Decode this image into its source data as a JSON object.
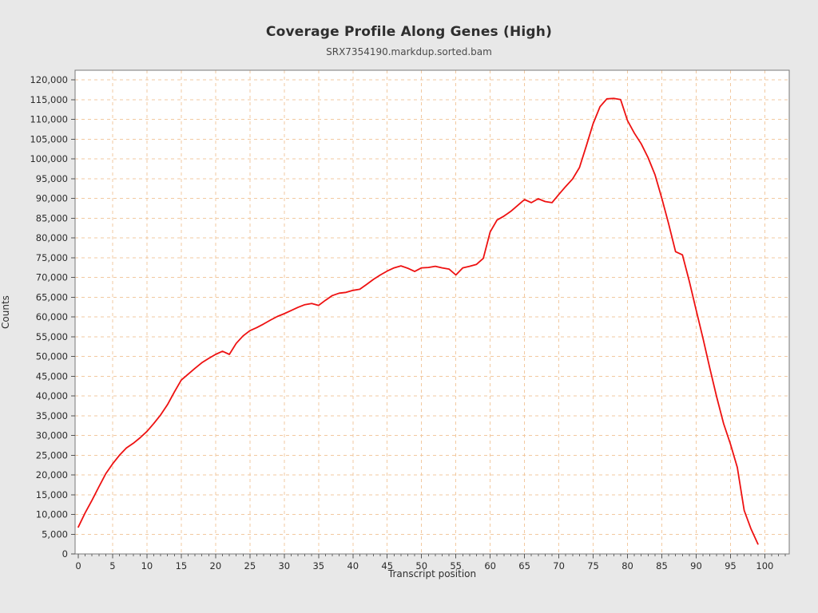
{
  "title": "Coverage Profile Along Genes (High)",
  "subtitle": "SRX7354190.markdup.sorted.bam",
  "chart_data": {
    "type": "line",
    "title": "Coverage Profile Along Genes (High)",
    "subtitle": "SRX7354190.markdup.sorted.bam",
    "xlabel": "Transcript position",
    "ylabel": "Counts",
    "xlim": [
      0,
      104
    ],
    "ylim": [
      0,
      122400
    ],
    "grid": true,
    "legend_position": "none",
    "grid_color": "#f2c9a0",
    "line_color": "#ee1111",
    "plot_background": "#ffffff",
    "page_background": "#e8e8e8",
    "x_ticks": [
      0,
      5,
      10,
      15,
      20,
      25,
      30,
      35,
      40,
      45,
      50,
      55,
      60,
      65,
      70,
      75,
      80,
      85,
      90,
      95,
      100
    ],
    "y_ticks": [
      0,
      5000,
      10000,
      15000,
      20000,
      25000,
      30000,
      35000,
      40000,
      45000,
      50000,
      55000,
      60000,
      65000,
      70000,
      75000,
      80000,
      85000,
      90000,
      95000,
      100000,
      105000,
      110000,
      115000,
      120000
    ],
    "series": [
      {
        "name": "SRX7354190.markdup.sorted.bam",
        "x_start": 0,
        "x_step": 1,
        "values": [
          6800,
          10400,
          13600,
          17000,
          20300,
          22800,
          25000,
          26800,
          28000,
          29400,
          31000,
          33000,
          35200,
          37800,
          41000,
          44000,
          45500,
          47000,
          48400,
          49500,
          50500,
          51300,
          50500,
          53300,
          55200,
          56500,
          57300,
          58200,
          59200,
          60100,
          60800,
          61600,
          62400,
          63100,
          63400,
          62900,
          64200,
          65400,
          66000,
          66200,
          66700,
          67000,
          68200,
          69500,
          70600,
          71600,
          72400,
          72900,
          72300,
          71500,
          72400,
          72500,
          72800,
          72400,
          72100,
          70600,
          72400,
          72800,
          73300,
          74800,
          81500,
          84500,
          85500,
          86700,
          88200,
          89700,
          88900,
          89900,
          89200,
          88900,
          91000,
          93000,
          94900,
          97800,
          103300,
          108900,
          113200,
          115200,
          115300,
          115000,
          109700,
          106500,
          103800,
          100300,
          96000,
          90000,
          83500,
          76500,
          75700,
          69000,
          61700,
          54500,
          47000,
          39700,
          33000,
          27800,
          21900,
          11000,
          6300,
          2500
        ]
      }
    ]
  }
}
